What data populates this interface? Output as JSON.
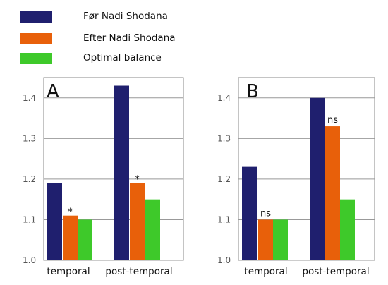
{
  "legend": [
    {
      "name": "Før Nadi Shodana",
      "color": "#1f1f6e"
    },
    {
      "name": "Efter Nadi Shodana",
      "color": "#e8600a"
    },
    {
      "name": "Optimal balance",
      "color": "#3ec92a"
    }
  ],
  "chart_data": [
    {
      "type": "bar",
      "panel": "A",
      "categories": [
        "temporal",
        "post-temporal"
      ],
      "ylim": [
        1.0,
        1.45
      ],
      "yticks": [
        "1.0",
        "1.1",
        "1.2",
        "1.3",
        "1.4"
      ],
      "grid": true,
      "series": [
        {
          "name": "Før Nadi Shodana",
          "values": [
            1.19,
            1.43
          ]
        },
        {
          "name": "Efter Nadi Shodana",
          "values": [
            1.11,
            1.19
          ]
        },
        {
          "name": "Optimal balance",
          "values": [
            1.1,
            1.15
          ]
        }
      ],
      "annotations": [
        {
          "category": "temporal",
          "series": "Efter Nadi Shodana",
          "text": "*"
        },
        {
          "category": "post-temporal",
          "series": "Efter Nadi Shodana",
          "text": "*"
        }
      ]
    },
    {
      "type": "bar",
      "panel": "B",
      "categories": [
        "temporal",
        "post-temporal"
      ],
      "ylim": [
        1.0,
        1.45
      ],
      "yticks": [
        "1.0",
        "1.1",
        "1.2",
        "1.3",
        "1.4"
      ],
      "grid": true,
      "series": [
        {
          "name": "Før Nadi Shodana",
          "values": [
            1.23,
            1.4
          ]
        },
        {
          "name": "Efter Nadi Shodana",
          "values": [
            1.1,
            1.33
          ]
        },
        {
          "name": "Optimal balance",
          "values": [
            1.1,
            1.15
          ]
        }
      ],
      "annotations": [
        {
          "category": "temporal",
          "series": "Efter Nadi Shodana",
          "text": "ns"
        },
        {
          "category": "post-temporal",
          "series": "Efter Nadi Shodana",
          "text": "ns"
        }
      ]
    }
  ]
}
